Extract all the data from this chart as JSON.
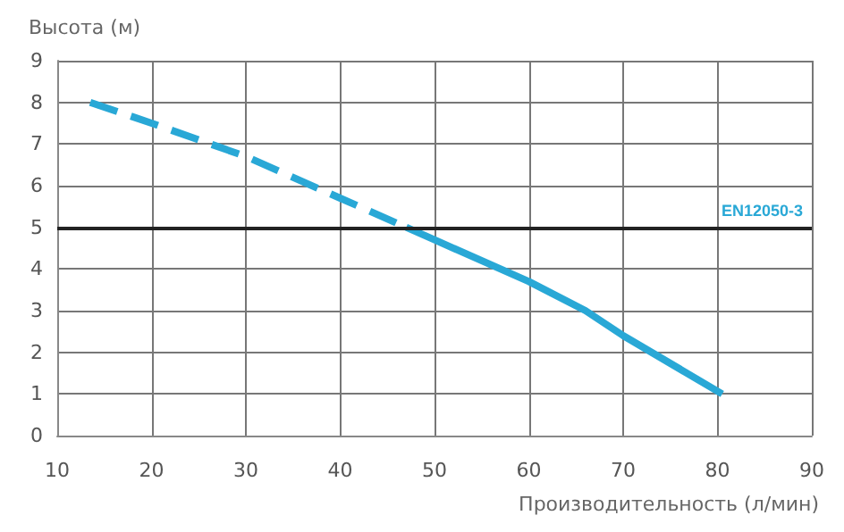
{
  "chart_data": {
    "type": "line",
    "ylabel": "Высота (м)",
    "xlabel": "Производительность (л/мин)",
    "xlim": [
      10,
      90
    ],
    "xticks": [
      10,
      20,
      30,
      40,
      50,
      60,
      70,
      80,
      90
    ],
    "ylim": [
      0,
      9
    ],
    "yticks": [
      0,
      1,
      2,
      3,
      4,
      5,
      6,
      7,
      8,
      9
    ],
    "grid": true,
    "marker": "none",
    "series": [
      {
        "color": "#29a8d6",
        "line_style": "dashed",
        "x": [
          13.5,
          20,
          30,
          40,
          47
        ],
        "values": [
          8.0,
          7.5,
          6.7,
          5.7,
          5.0
        ]
      },
      {
        "color": "#29a8d6",
        "line_style": "solid",
        "x": [
          47,
          50,
          60,
          66,
          70,
          80.5
        ],
        "values": [
          5.0,
          4.7,
          3.7,
          3.0,
          2.4,
          1.0
        ]
      }
    ],
    "ref_lines": [
      {
        "axis": "y",
        "value": 5,
        "label": "EN12050-3",
        "color": "#222222"
      }
    ]
  }
}
